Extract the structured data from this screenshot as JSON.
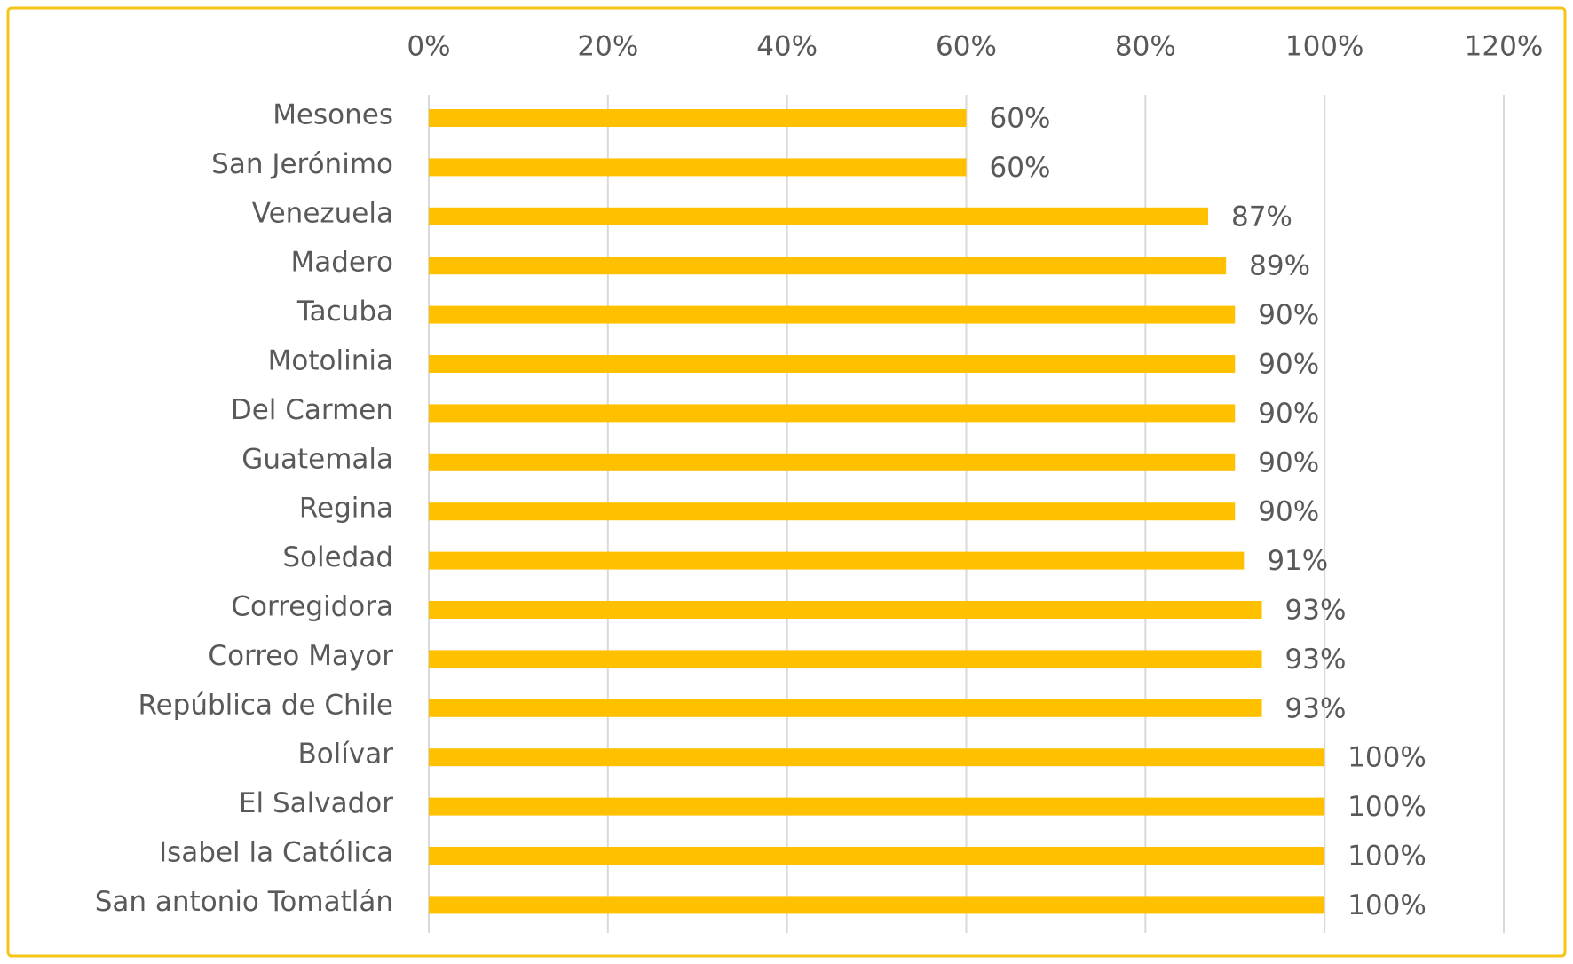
{
  "chart_data": {
    "type": "bar",
    "orientation": "horizontal",
    "categories": [
      "Mesones",
      "San Jerónimo",
      "Venezuela",
      "Madero",
      "Tacuba",
      "Motolinia",
      "Del Carmen",
      "Guatemala",
      "Regina",
      "Soledad",
      "Corregidora",
      "Correo Mayor",
      "República de Chile",
      "Bolívar",
      "El Salvador",
      "Isabel la Católica",
      "San antonio Tomatlán"
    ],
    "values": [
      60,
      60,
      87,
      89,
      90,
      90,
      90,
      90,
      90,
      91,
      93,
      93,
      93,
      100,
      100,
      100,
      100
    ],
    "value_labels": [
      "60%",
      "60%",
      "87%",
      "89%",
      "90%",
      "90%",
      "90%",
      "90%",
      "90%",
      "91%",
      "93%",
      "93%",
      "93%",
      "100%",
      "100%",
      "100%",
      "100%"
    ],
    "color": "#ffc000",
    "xlim": [
      0,
      120
    ],
    "xticks": [
      {
        "value": 0,
        "label": "0%"
      },
      {
        "value": 20,
        "label": "20%"
      },
      {
        "value": 40,
        "label": "40%"
      },
      {
        "value": 60,
        "label": "60%"
      },
      {
        "value": 80,
        "label": "80%"
      },
      {
        "value": 100,
        "label": "100%"
      },
      {
        "value": 120,
        "label": "120%"
      }
    ],
    "grid": true
  }
}
